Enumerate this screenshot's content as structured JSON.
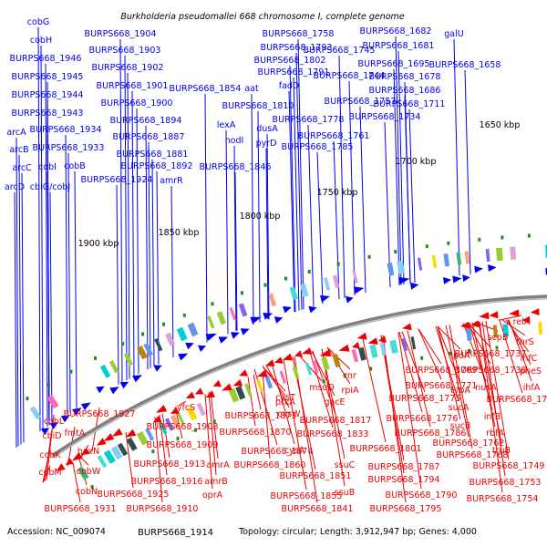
{
  "title": "Burkholderia pseudomallei 668 chromosome I, complete genome",
  "footer": {
    "accession": "Accession: NC_009074",
    "extra_label": "BURPS668_1914",
    "topology": "Topology: circular; Length: 3,912,947 bp; Genes: 4,000"
  },
  "colors": {
    "forward": "#0000ee",
    "reverse": "#ee0000",
    "backbone": "#808080",
    "tick_marker": "#228b22"
  },
  "ruler_labels": [
    "1650 kbp",
    "1700 kbp",
    "1750 kbp",
    "1800 kbp",
    "1850 kbp",
    "1900 kbp"
  ],
  "forward_genes": [
    "cobG",
    "cobH",
    "BURPS668_1946",
    "BURPS668_1945",
    "BURPS668_1944",
    "BURPS668_1943",
    "arcA",
    "arcB",
    "arcC",
    "arcD",
    "BURPS668_1934",
    "BURPS668_1933",
    "cobI",
    "cbiG/cobJ",
    "cobB",
    "BURPS668_1904",
    "BURPS668_1903",
    "BURPS668_1902",
    "BURPS668_1901",
    "BURPS668_1900",
    "BURPS668_1894",
    "BURPS668_1887",
    "BURPS668_1881",
    "BURPS668_1892",
    "BURPS668_1924",
    "amrR",
    "BURPS668_1854",
    "lexA",
    "nodI",
    "BURPS668_1846",
    "aat",
    "BURPS668_1810",
    "dusA",
    "pyrD",
    "BURPS668_1758",
    "BURPS668_1793",
    "BURPS668_1802",
    "BURPS668_1791",
    "fadD",
    "BURPS668_1778",
    "BURPS668_1785",
    "BURPS668_1761",
    "BURPS668_1757",
    "BURPS668_1745",
    "BURPS668_1744",
    "BURPS668_1682",
    "BURPS668_1681",
    "galU",
    "BURPS668_1695",
    "BURPS668_1658",
    "BURPS668_1678",
    "BURPS668_1686",
    "BURPS668_1711",
    "BURPS668_1734"
  ],
  "reverse_genes": [
    "relA",
    "thrS",
    "infC",
    "pheS",
    "ihfA",
    "BURPS668_1732",
    "scpB",
    "BURPS668_1737",
    "BURPS668_1738",
    "nusA",
    "infB",
    "rbfA",
    "truB",
    "lpdA",
    "BURPS668_1769",
    "BURPS668_1771",
    "BURPS668_1775",
    "typA",
    "sucA",
    "sucB",
    "BURPS668_1776",
    "BURPS668_1786",
    "BURPS668_1762",
    "BURPS668_1768",
    "BURPS668_1749",
    "BURPS668_1753",
    "BURPS668_1754",
    "BURPS668_1801",
    "BURPS668_1787",
    "BURPS668_1794",
    "BURPS668_1790",
    "BURPS668_1795",
    "rnr",
    "rpiA",
    "gacE",
    "msuD",
    "BURPS668_1817",
    "BURPS668_1833",
    "ssuC",
    "ssuB",
    "cysT",
    "cysW",
    "cysA",
    "prkA",
    "BURPS668_1873",
    "BURPS668_1870",
    "BURPS668_1874",
    "BURPS668_1860",
    "BURPS668_1851",
    "BURPS668_1855",
    "BURPS668_1841",
    "yfcS",
    "amrA",
    "amrB",
    "oprA",
    "BURPS668_1908",
    "BURPS668_1909",
    "BURPS668_1913",
    "BURPS668_1916",
    "BURPS668_1910",
    "BURPS668_1927",
    "BURPS668_1925",
    "BURPS668_1931",
    "fmtA",
    "hoxN",
    "cobW",
    "cobN",
    "cobL",
    "cbiD",
    "cobK",
    "cobM"
  ]
}
